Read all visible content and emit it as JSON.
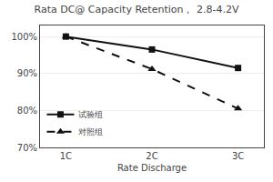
{
  "chart_data": {
    "type": "line",
    "title": "Rata DC@ Capacity Retention， 2.8-4.2V",
    "xlabel": "Rate Discharge",
    "x": [
      1,
      2,
      3
    ],
    "series": [
      {
        "name": "试验组",
        "color": "#111111",
        "marker": "square",
        "line_style": "solid",
        "values": [
          100.0,
          96.5,
          91.5
        ]
      },
      {
        "name": "对照组",
        "color": "#111111",
        "marker": "triangle-up",
        "line_style": "dashed",
        "values": [
          100.0,
          91.2,
          80.5
        ]
      }
    ],
    "xlim": [
      0.7,
      3.3
    ],
    "xticks": [
      {
        "value": 1,
        "label": "1C"
      },
      {
        "value": 2,
        "label": "2C"
      },
      {
        "value": 3,
        "label": "3C"
      }
    ],
    "ylim": [
      70,
      103
    ],
    "yticks": [
      {
        "value": 70,
        "label": "70%"
      },
      {
        "value": 80,
        "label": "80%"
      },
      {
        "value": 90,
        "label": "90%"
      },
      {
        "value": 100,
        "label": "100%"
      }
    ],
    "grid": "y",
    "legend": "lower left"
  }
}
